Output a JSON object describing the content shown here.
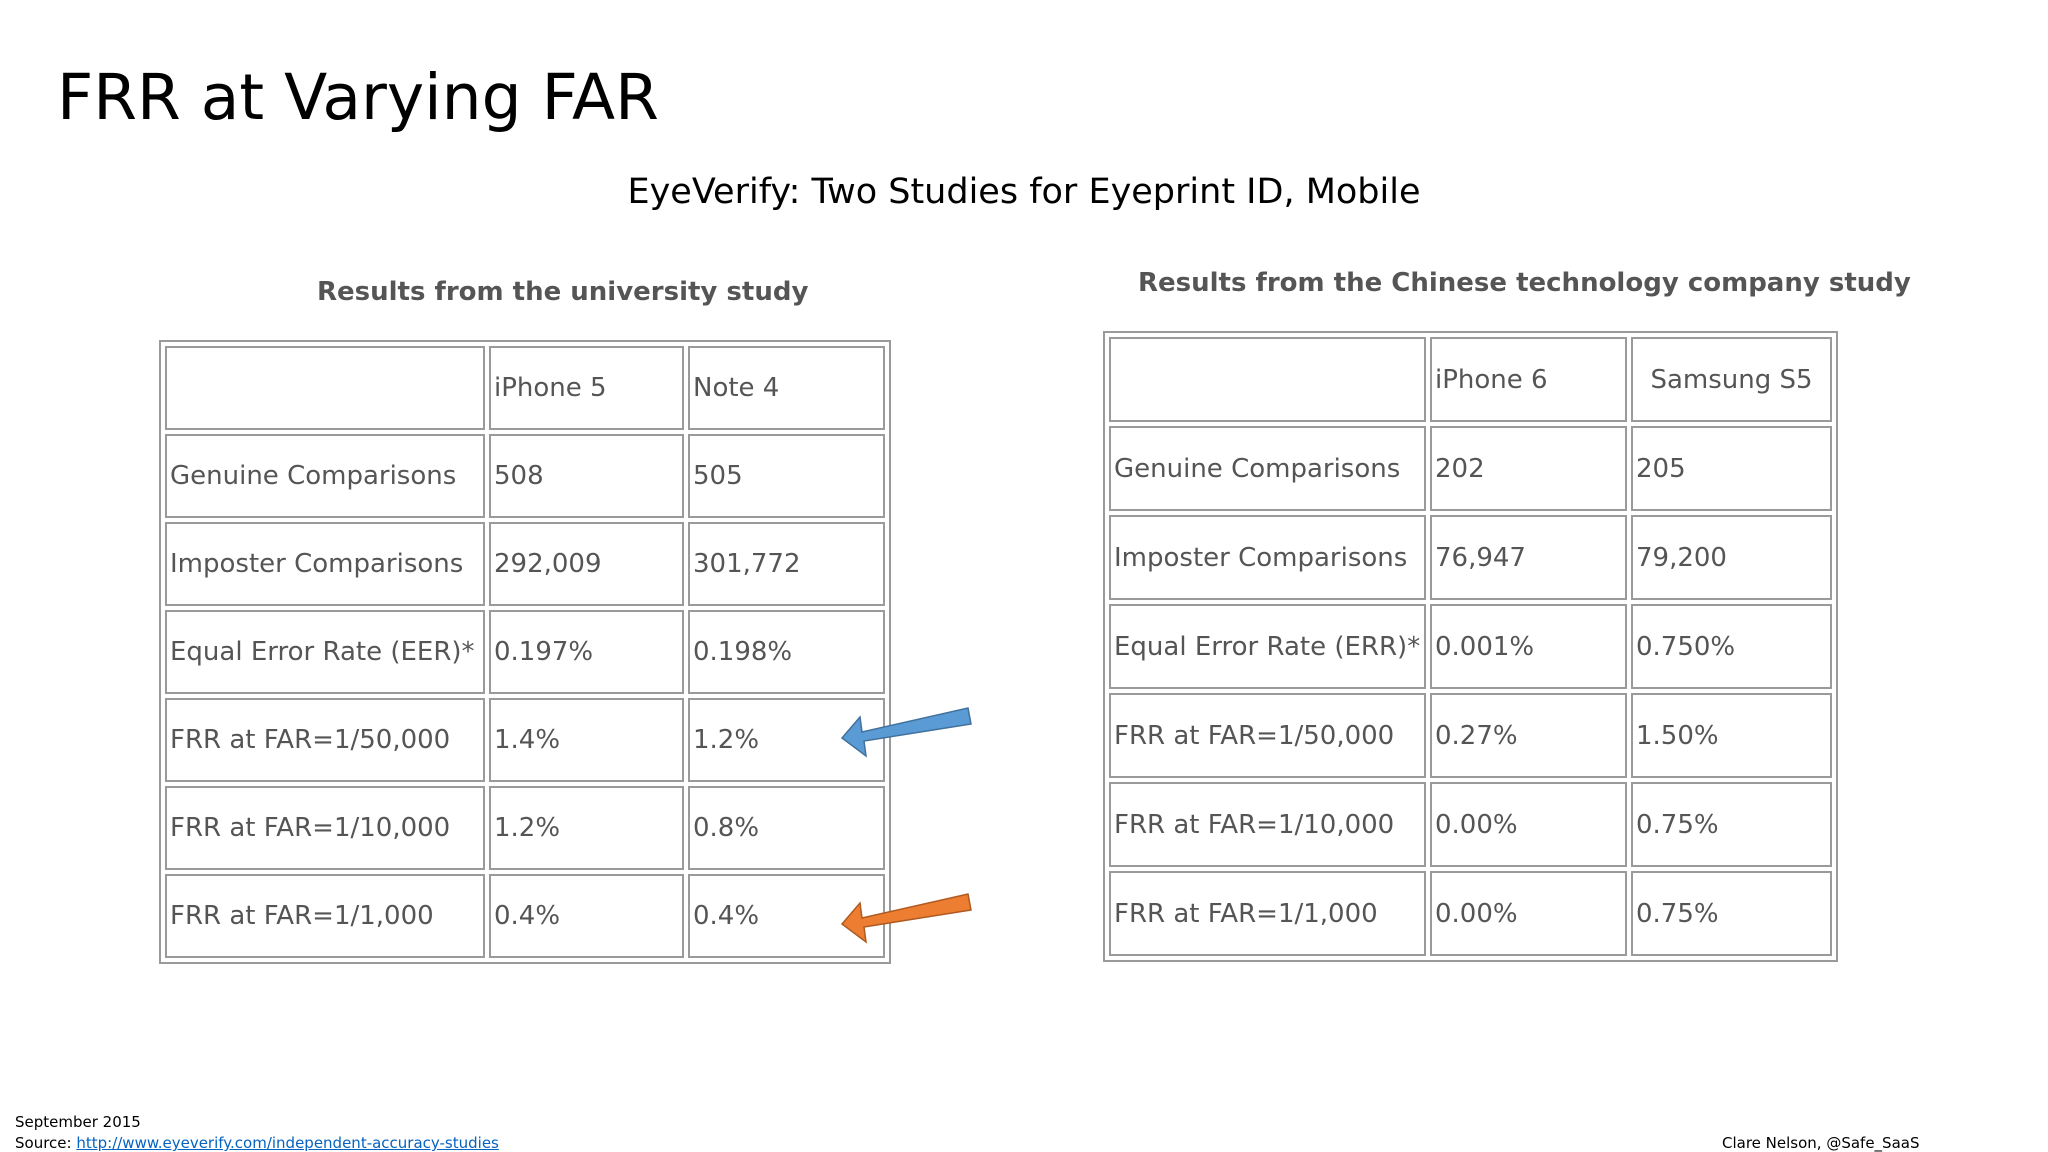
{
  "slide": {
    "title": "FRR at Varying FAR",
    "subtitle": "EyeVerify: Two Studies for Eyeprint ID, Mobile"
  },
  "university_study": {
    "caption": "Results from the university study",
    "columns": [
      "",
      "iPhone 5",
      "Note 4"
    ],
    "rows": [
      [
        "Genuine Comparisons",
        "508",
        "505"
      ],
      [
        "Imposter Comparisons",
        "292,009",
        "301,772"
      ],
      [
        "Equal Error Rate (EER)*",
        "0.197%",
        "0.198%"
      ],
      [
        "FRR at FAR=1/50,000",
        "1.4%",
        "1.2%"
      ],
      [
        "FRR at FAR=1/10,000",
        "1.2%",
        "0.8%"
      ],
      [
        "FRR at FAR=1/1,000",
        "0.4%",
        "0.4%"
      ]
    ]
  },
  "chinese_study": {
    "caption": "Results from the Chinese technology company study",
    "columns": [
      "",
      "iPhone 6",
      "Samsung S5"
    ],
    "rows": [
      [
        "Genuine Comparisons",
        "202",
        "205"
      ],
      [
        "Imposter Comparisons",
        "76,947",
        "79,200"
      ],
      [
        "Equal Error Rate (ERR)*",
        "0.001%",
        "0.750%"
      ],
      [
        "FRR at FAR=1/50,000",
        "0.27%",
        "1.50%"
      ],
      [
        "FRR at FAR=1/10,000",
        "0.00%",
        "0.75%"
      ],
      [
        "FRR at FAR=1/1,000",
        "0.00%",
        "0.75%"
      ]
    ]
  },
  "arrows": {
    "top": {
      "icon": "left-arrow-icon",
      "color": "#5b9bd5"
    },
    "bottom": {
      "icon": "left-arrow-icon",
      "color": "#ed7d31"
    }
  },
  "footer": {
    "date": "September 2015",
    "source_label": "Source: ",
    "source_link": "http://www.eyeverify.com/independent-accuracy-studies",
    "author": "Clare Nelson, @Safe_SaaS"
  }
}
